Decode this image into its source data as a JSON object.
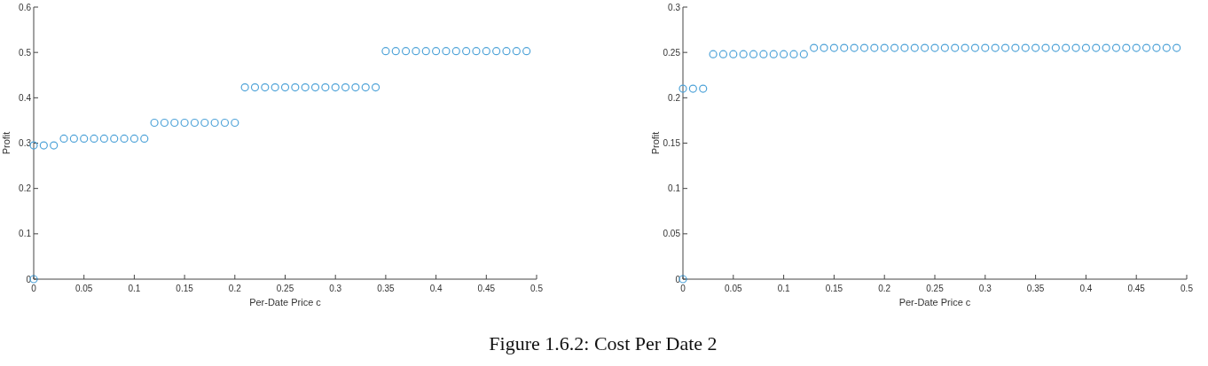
{
  "chart_data": [
    {
      "type": "scatter",
      "xlabel": "Per-Date Price c",
      "ylabel": "Profit",
      "marker": "circle",
      "xlim": [
        0,
        0.5
      ],
      "ylim": [
        0,
        0.6
      ],
      "xticks": [
        0,
        0.05,
        0.1,
        0.15,
        0.2,
        0.25,
        0.3,
        0.35,
        0.4,
        0.45,
        0.5
      ],
      "yticks": [
        0,
        0.1,
        0.2,
        0.3,
        0.4,
        0.5,
        0.6
      ],
      "annotations": [
        "Figure 1.6.2:  Cost Per Date 2"
      ],
      "series": [
        {
          "color": "#4fa3d8",
          "x": [
            0,
            0,
            0.01,
            0.02,
            0.03,
            0.04,
            0.05,
            0.06,
            0.07,
            0.08,
            0.09,
            0.1,
            0.11,
            0.12,
            0.13,
            0.14,
            0.15,
            0.16,
            0.17,
            0.18,
            0.19,
            0.2,
            0.21,
            0.22,
            0.23,
            0.24,
            0.25,
            0.26,
            0.27,
            0.28,
            0.29,
            0.3,
            0.31,
            0.32,
            0.33,
            0.34,
            0.35,
            0.36,
            0.37,
            0.38,
            0.39,
            0.4,
            0.41,
            0.42,
            0.43,
            0.44,
            0.45,
            0.46,
            0.47,
            0.48,
            0.49
          ],
          "values": [
            0,
            0.295,
            0.295,
            0.295,
            0.31,
            0.31,
            0.31,
            0.31,
            0.31,
            0.31,
            0.31,
            0.31,
            0.31,
            0.345,
            0.345,
            0.345,
            0.345,
            0.345,
            0.345,
            0.345,
            0.345,
            0.345,
            0.423,
            0.423,
            0.423,
            0.423,
            0.423,
            0.423,
            0.423,
            0.423,
            0.423,
            0.423,
            0.423,
            0.423,
            0.423,
            0.423,
            0.503,
            0.503,
            0.503,
            0.503,
            0.503,
            0.503,
            0.503,
            0.503,
            0.503,
            0.503,
            0.503,
            0.503,
            0.503,
            0.503,
            0.503
          ]
        }
      ]
    },
    {
      "type": "scatter",
      "xlabel": "Per-Date Price c",
      "ylabel": "Profit",
      "marker": "circle",
      "xlim": [
        0,
        0.5
      ],
      "ylim": [
        0,
        0.3
      ],
      "xticks": [
        0,
        0.05,
        0.1,
        0.15,
        0.2,
        0.25,
        0.3,
        0.35,
        0.4,
        0.45,
        0.5
      ],
      "yticks": [
        0,
        0.05,
        0.1,
        0.15,
        0.2,
        0.25,
        0.3
      ],
      "series": [
        {
          "color": "#4fa3d8",
          "x": [
            0,
            0,
            0.01,
            0.02,
            0.03,
            0.04,
            0.05,
            0.06,
            0.07,
            0.08,
            0.09,
            0.1,
            0.11,
            0.12,
            0.13,
            0.14,
            0.15,
            0.16,
            0.17,
            0.18,
            0.19,
            0.2,
            0.21,
            0.22,
            0.23,
            0.24,
            0.25,
            0.26,
            0.27,
            0.28,
            0.29,
            0.3,
            0.31,
            0.32,
            0.33,
            0.34,
            0.35,
            0.36,
            0.37,
            0.38,
            0.39,
            0.4,
            0.41,
            0.42,
            0.43,
            0.44,
            0.45,
            0.46,
            0.47,
            0.48,
            0.49
          ],
          "values": [
            0,
            0.21,
            0.21,
            0.21,
            0.248,
            0.248,
            0.248,
            0.248,
            0.248,
            0.248,
            0.248,
            0.248,
            0.248,
            0.248,
            0.255,
            0.255,
            0.255,
            0.255,
            0.255,
            0.255,
            0.255,
            0.255,
            0.255,
            0.255,
            0.255,
            0.255,
            0.255,
            0.255,
            0.255,
            0.255,
            0.255,
            0.255,
            0.255,
            0.255,
            0.255,
            0.255,
            0.255,
            0.255,
            0.255,
            0.255,
            0.255,
            0.255,
            0.255,
            0.255,
            0.255,
            0.255,
            0.255,
            0.255,
            0.255,
            0.255,
            0.255
          ]
        }
      ]
    }
  ]
}
